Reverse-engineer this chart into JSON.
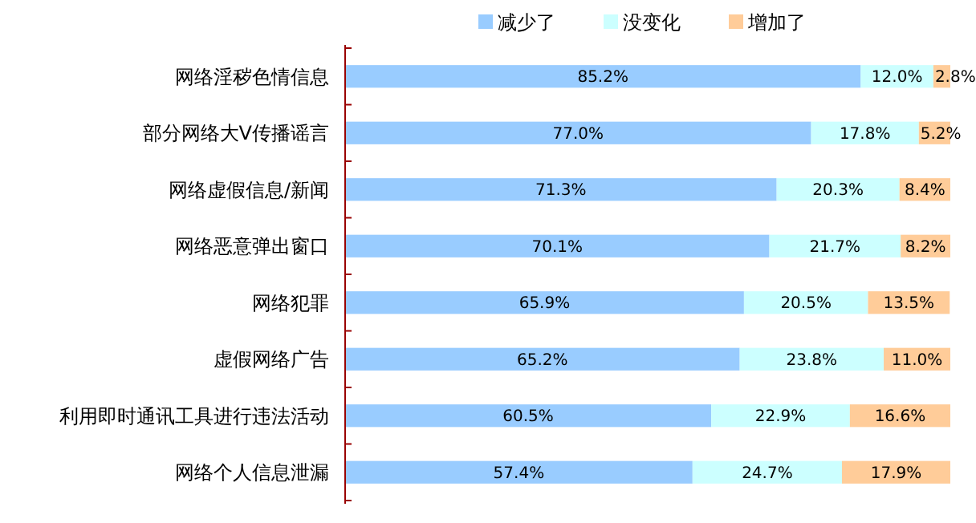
{
  "chart_data": {
    "type": "bar",
    "orientation": "horizontal",
    "stacked": true,
    "legend": "top right",
    "xlim": [
      0,
      100
    ],
    "categories": [
      "网络淫秽色情信息",
      "部分网络大V传播谣言",
      "网络虚假信息/新闻",
      "网络恶意弹出窗口",
      "网络犯罪",
      "虚假网络广告",
      "利用即时通讯工具进行违法活动",
      "网络个人信息泄漏"
    ],
    "series": [
      {
        "name": "减少了",
        "color": "#99ccff",
        "values": [
          85.2,
          77.0,
          71.3,
          70.1,
          65.9,
          65.2,
          60.5,
          57.4
        ],
        "value_labels": [
          "85.2%",
          "77.0%",
          "71.3%",
          "70.1%",
          "65.9%",
          "65.2%",
          "60.5%",
          "57.4%"
        ]
      },
      {
        "name": "没变化",
        "color": "#ccffff",
        "values": [
          12.0,
          17.8,
          20.3,
          21.7,
          20.5,
          23.8,
          22.9,
          24.7
        ],
        "value_labels": [
          "12.0%",
          "17.8%",
          "20.3%",
          "21.7%",
          "20.5%",
          "23.8%",
          "22.9%",
          "24.7%"
        ]
      },
      {
        "name": "增加了",
        "color": "#ffcc99",
        "values": [
          2.8,
          5.2,
          8.4,
          8.2,
          13.5,
          11.0,
          16.6,
          17.9
        ],
        "value_labels": [
          "2.8%",
          "5.2%",
          "8.4%",
          "8.2%",
          "13.5%",
          "11.0%",
          "16.6%",
          "17.9%"
        ]
      }
    ]
  }
}
